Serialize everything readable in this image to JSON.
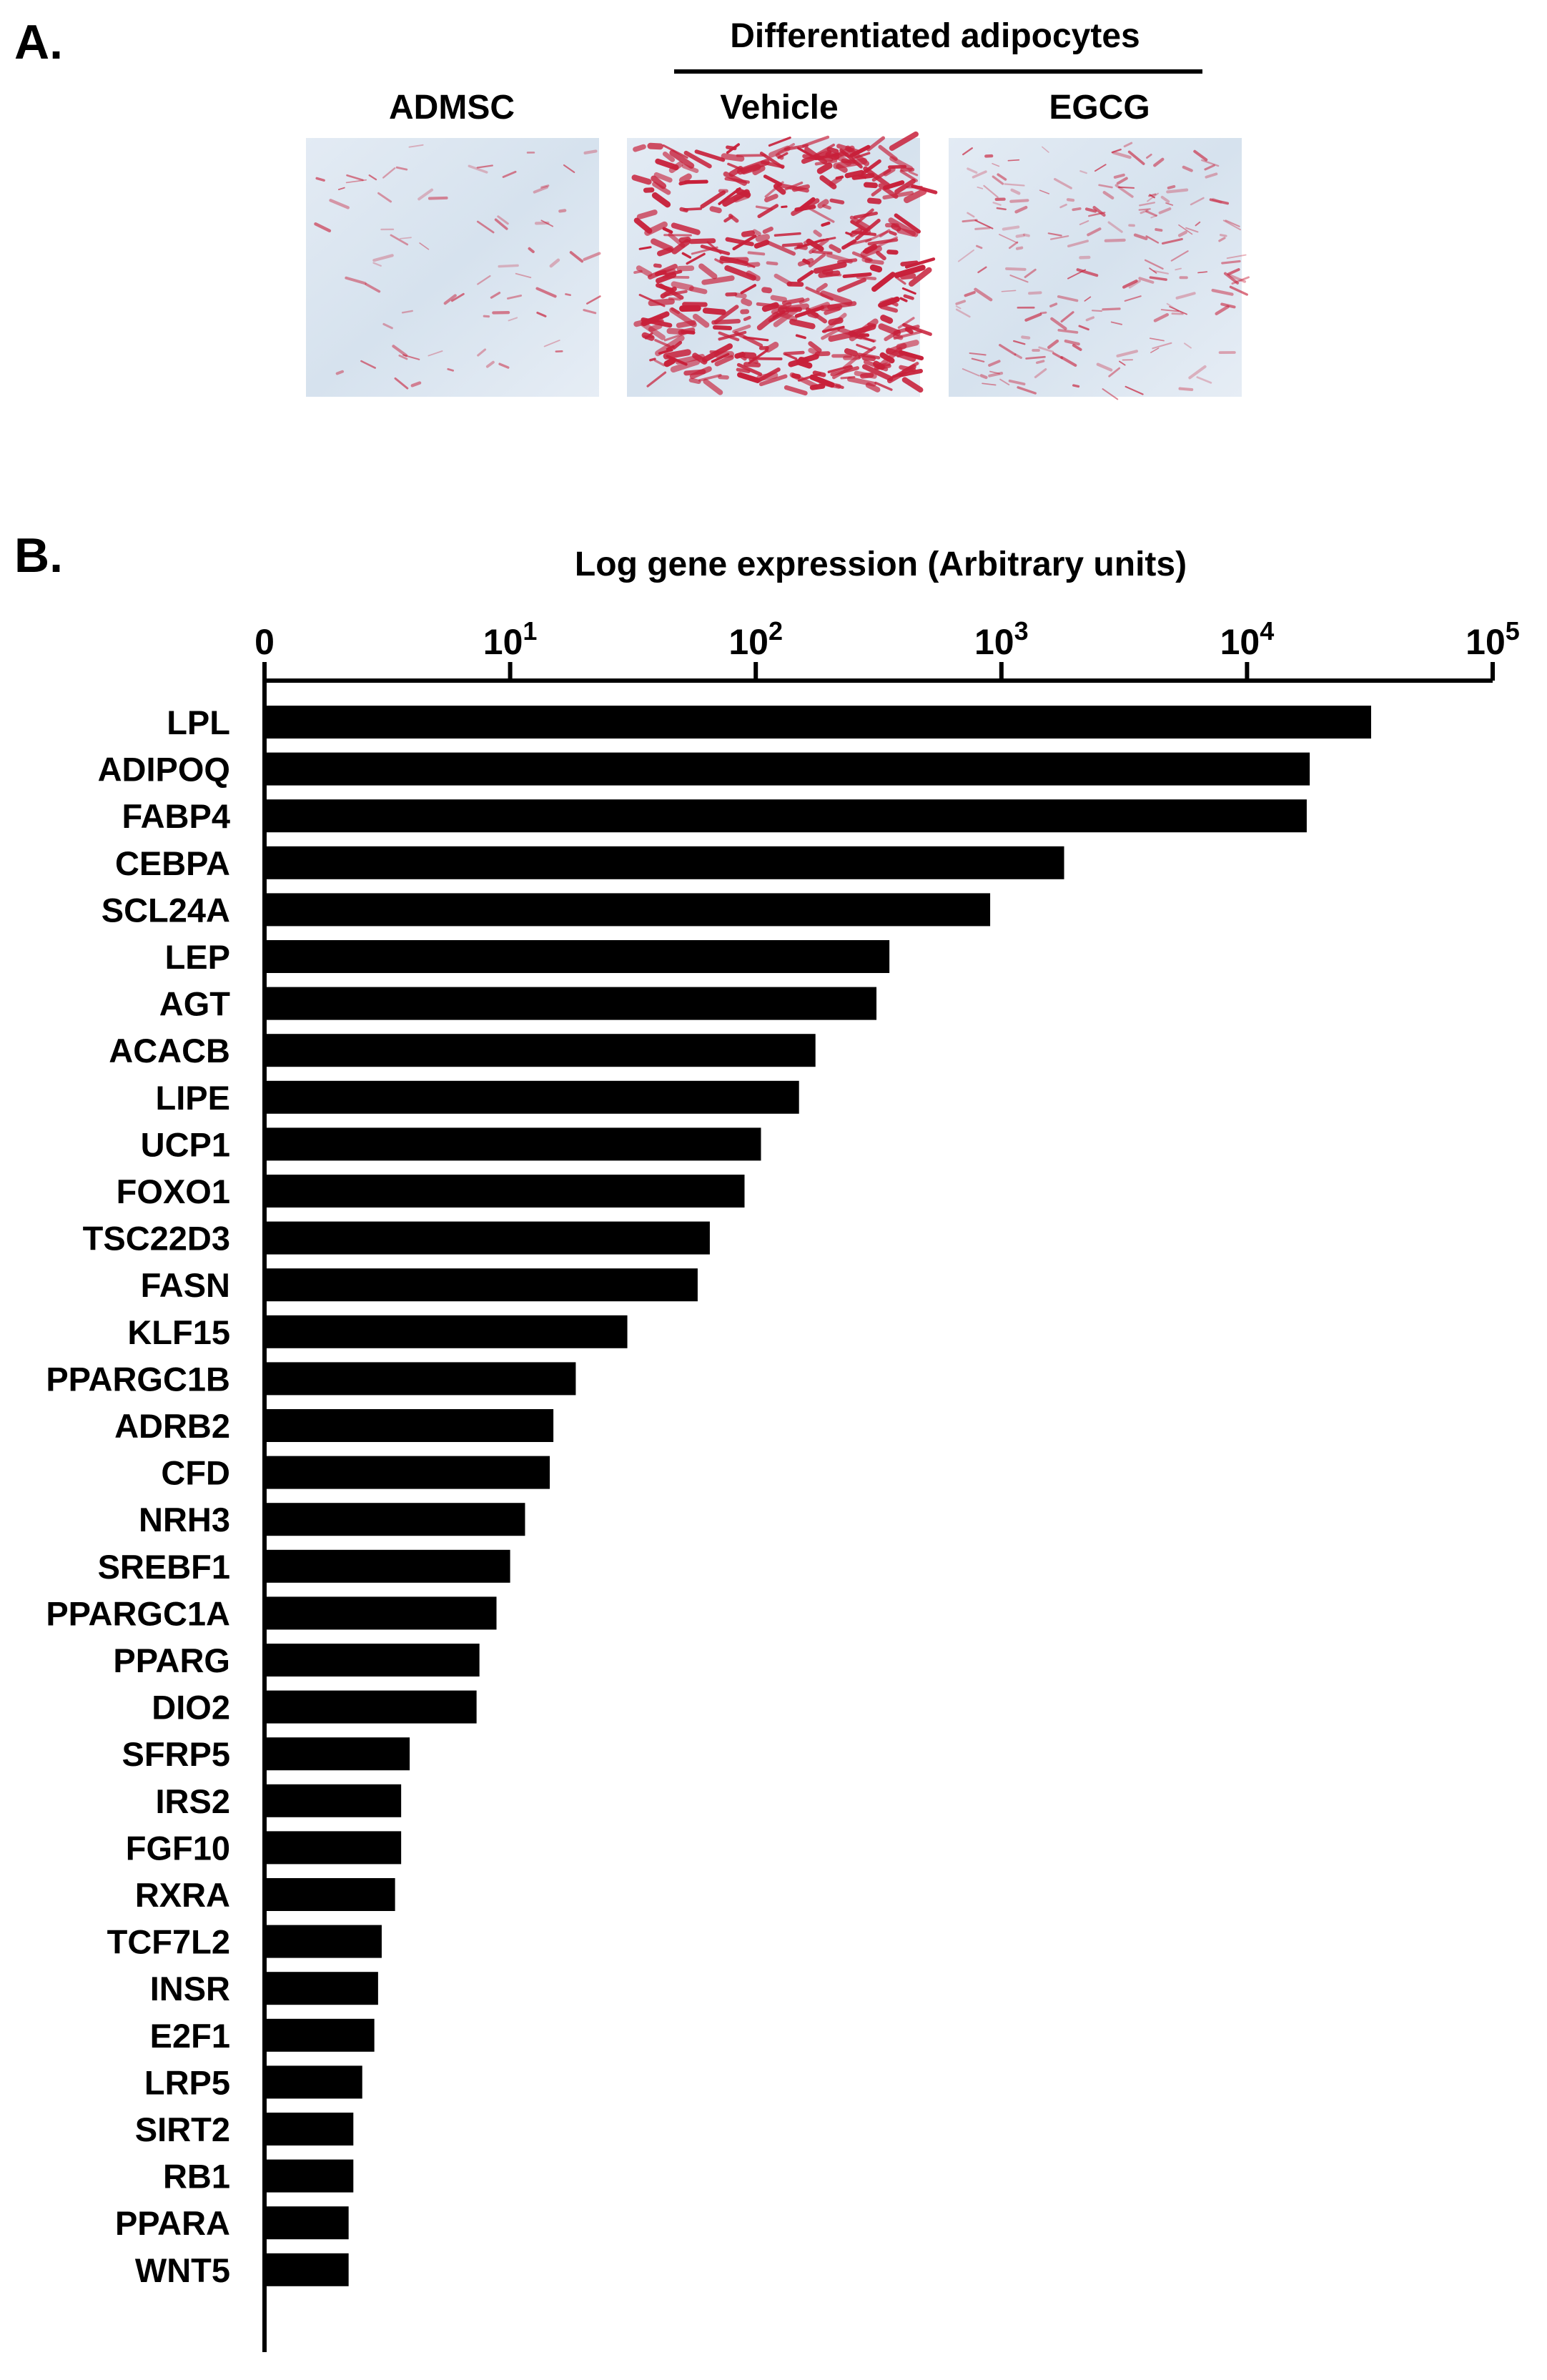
{
  "panel_a": {
    "label": "A.",
    "group_label": "Differentiated adipocytes",
    "images": [
      {
        "label": "ADMSC",
        "stain_level": "low"
      },
      {
        "label": "Vehicle",
        "stain_level": "high"
      },
      {
        "label": "EGCG",
        "stain_level": "medium"
      }
    ],
    "colors": {
      "background": "#dfe8f2",
      "stain": "#c8203a"
    }
  },
  "panel_b": {
    "label": "B."
  },
  "chart_data": {
    "type": "bar",
    "orientation": "horizontal",
    "xlabel": "Log gene expression (Arbitrary units)",
    "x_scale": "log",
    "xlim": [
      1,
      100000
    ],
    "x_ticks": [
      {
        "value": 1,
        "base": "0",
        "exp": ""
      },
      {
        "value": 10,
        "base": "10",
        "exp": "1"
      },
      {
        "value": 100,
        "base": "10",
        "exp": "2"
      },
      {
        "value": 1000,
        "base": "10",
        "exp": "3"
      },
      {
        "value": 10000,
        "base": "10",
        "exp": "4"
      },
      {
        "value": 100000,
        "base": "10",
        "exp": "5"
      }
    ],
    "bar_color": "#000000",
    "categories": [
      "LPL",
      "ADIPOQ",
      "FABP4",
      "CEBPA",
      "SCL24A",
      "LEP",
      "AGT",
      "ACACB",
      "LIPE",
      "UCP1",
      "FOXO1",
      "TSC22D3",
      "FASN",
      "KLF15",
      "PPARGC1B",
      "ADRB2",
      "CFD",
      "NRH3",
      "SREBF1",
      "PPARGC1A",
      "PPARG",
      "DIO2",
      "SFRP5",
      "IRS2",
      "FGF10",
      "RXRA",
      "TCF7L2",
      "INSR",
      "E2F1",
      "LRP5",
      "SIRT2",
      "RB1",
      "PPARA",
      "WNT5"
    ],
    "values": [
      32000,
      18000,
      17500,
      1800,
      900,
      350,
      310,
      175,
      150,
      105,
      90,
      65,
      58,
      30,
      18.5,
      15,
      14.5,
      11.5,
      10,
      8.8,
      7.5,
      7.3,
      3.9,
      3.6,
      3.6,
      3.4,
      3.0,
      2.9,
      2.8,
      2.5,
      2.3,
      2.3,
      2.2,
      2.2
    ]
  }
}
